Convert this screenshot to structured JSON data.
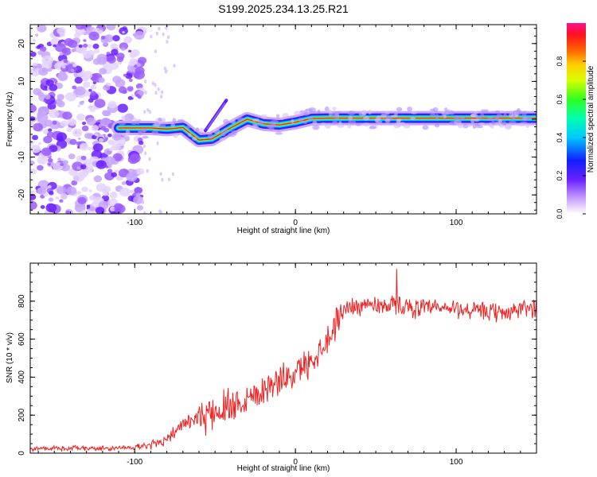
{
  "page_title": "S199.2025.234.13.25.R21",
  "colors": {
    "snr_line": "#ee2222",
    "axis": "#000000",
    "background": "#ffffff"
  },
  "chart_data": [
    {
      "type": "heatmap",
      "title": "S199.2025.234.13.25.R21",
      "xlabel": "Height of straight line (km)",
      "ylabel": "Frequency (Hz)",
      "xlim": [
        -165,
        150
      ],
      "ylim": [
        -25,
        25
      ],
      "xticks": [
        -100,
        0,
        100
      ],
      "xtick_labels": [
        "-100",
        "0",
        "100"
      ],
      "yticks": [
        -20,
        -10,
        0,
        10,
        20
      ],
      "ytick_labels": [
        "-20",
        "-10",
        "0",
        "10",
        "20"
      ],
      "colorbar": {
        "label": "Normalized spectral amplitude",
        "range": [
          0,
          1
        ],
        "ticks": [
          0,
          0.2,
          0.4,
          0.6,
          0.8
        ],
        "tick_labels": [
          "0.0",
          "0.2",
          "0.4",
          "0.6",
          "0.8"
        ]
      },
      "ridge": [
        [
          -110,
          -2.3
        ],
        [
          -90,
          -2.3
        ],
        [
          -80,
          -2.6
        ],
        [
          -70,
          -2.2
        ],
        [
          -60,
          -5.5
        ],
        [
          -52,
          -5.2
        ],
        [
          -40,
          -2.2
        ],
        [
          -30,
          0.0
        ],
        [
          -20,
          -1.2
        ],
        [
          -10,
          -1.5
        ],
        [
          0,
          -0.8
        ],
        [
          10,
          0.2
        ],
        [
          20,
          0.3
        ],
        [
          50,
          0.3
        ],
        [
          100,
          0.3
        ],
        [
          150,
          0.3
        ]
      ],
      "noise_region_x": [
        -165,
        -95
      ]
    },
    {
      "type": "line",
      "xlabel": "Height of straight line (km)",
      "ylabel": "SNR (10 * v/v)",
      "xlim": [
        -165,
        150
      ],
      "ylim": [
        0,
        1000
      ],
      "xticks": [
        -100,
        0,
        100
      ],
      "xtick_labels": [
        "-100",
        "0",
        "100"
      ],
      "yticks": [
        0,
        200,
        400,
        600,
        800
      ],
      "ytick_labels": [
        "0",
        "200",
        "400",
        "600",
        "800"
      ],
      "series": [
        {
          "name": "SNR",
          "trend": [
            [
              -165,
              25
            ],
            [
              -110,
              25
            ],
            [
              -90,
              40
            ],
            [
              -80,
              80
            ],
            [
              -70,
              150
            ],
            [
              -50,
              220
            ],
            [
              -40,
              260
            ],
            [
              -30,
              290
            ],
            [
              -20,
              340
            ],
            [
              -10,
              380
            ],
            [
              0,
              420
            ],
            [
              10,
              490
            ],
            [
              20,
              600
            ],
            [
              30,
              760
            ],
            [
              40,
              780
            ],
            [
              60,
              780
            ],
            [
              80,
              760
            ],
            [
              100,
              760
            ],
            [
              120,
              740
            ],
            [
              130,
              740
            ],
            [
              150,
              770
            ]
          ],
          "peak": [
            63,
            970
          ]
        }
      ]
    }
  ]
}
